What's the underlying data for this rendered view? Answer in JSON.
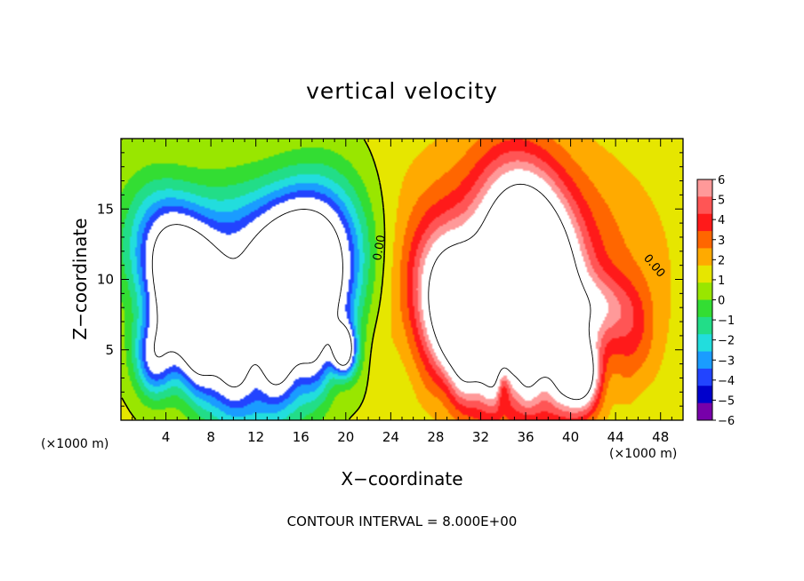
{
  "chart_data": {
    "type": "heatmap",
    "title": "vertical velocity",
    "xlabel": "X−coordinate",
    "ylabel": "Z−coordinate",
    "x_unit_left": "(×1000 m)",
    "x_unit_right": "(×1000 m)",
    "footer": "CONTOUR INTERVAL = 8.000E+00",
    "xlim": [
      0,
      50
    ],
    "ylim": [
      0,
      20
    ],
    "x_ticks": [
      4,
      8,
      12,
      16,
      20,
      24,
      28,
      32,
      36,
      40,
      44,
      48
    ],
    "x_tick_labels": [
      "4",
      "8",
      "12",
      "16",
      "20",
      "24",
      "28",
      "32",
      "36",
      "40",
      "44",
      "48"
    ],
    "y_ticks": [
      5,
      10,
      15
    ],
    "y_tick_labels": [
      "5",
      "10",
      "15"
    ],
    "colorbar": {
      "levels": [
        6,
        5,
        4,
        3,
        2,
        1,
        0,
        -1,
        -2,
        -3,
        -4,
        -5,
        -6
      ],
      "labels": [
        "6",
        "5",
        "4",
        "3",
        "2",
        "1",
        "0",
        "−1",
        "−2",
        "−3",
        "−4",
        "−5",
        "−6"
      ],
      "colors": [
        "#ff9999",
        "#ff5555",
        "#ff1a1a",
        "#ff6600",
        "#ffaa00",
        "#e6e600",
        "#99e600",
        "#33dd33",
        "#22dd88",
        "#22dddd",
        "#1a9cff",
        "#2244ff",
        "#0000cc",
        "#7700aa"
      ],
      "over_color": "#ffffff",
      "under_color": "#ffffff"
    },
    "contour_labels": [
      {
        "text": "0.00",
        "x": 23.3,
        "y": 12.2,
        "angle": -80
      },
      {
        "text": "0.00",
        "x": 47.2,
        "y": 10.8,
        "angle": 50
      }
    ],
    "features": [
      {
        "name": "downdraft-left-1",
        "sign": -1,
        "x": 6.5,
        "y": 8.0,
        "sx": 2.2,
        "sy": 4.5,
        "amp": 15,
        "theta": 25
      },
      {
        "name": "downdraft-left-2",
        "sign": -1,
        "x": 15.5,
        "y": 8.5,
        "sx": 3.0,
        "sy": 4.8,
        "amp": 16,
        "theta": -20
      },
      {
        "name": "downdraft-left-3",
        "sign": -1,
        "x": 11.0,
        "y": 12.0,
        "sx": 6.5,
        "sy": 3.5,
        "amp": 5,
        "theta": 0
      },
      {
        "name": "downdraft-left-4",
        "sign": -1,
        "x": 19.8,
        "y": 5.0,
        "sx": 0.7,
        "sy": 1.2,
        "amp": 10,
        "theta": 0
      },
      {
        "name": "downdraft-left-5",
        "sign": -1,
        "x": 3.0,
        "y": 4.5,
        "sx": 1.4,
        "sy": 2.0,
        "amp": 6,
        "theta": 0
      },
      {
        "name": "updraft-right-1",
        "sign": 1,
        "x": 36.5,
        "y": 9.5,
        "sx": 2.6,
        "sy": 5.0,
        "amp": 16,
        "theta": 10
      },
      {
        "name": "updraft-right-2",
        "sign": 1,
        "x": 30.5,
        "y": 7.0,
        "sx": 2.2,
        "sy": 3.8,
        "amp": 13,
        "theta": 20
      },
      {
        "name": "updraft-right-3",
        "sign": 1,
        "x": 35.0,
        "y": 11.0,
        "sx": 7.5,
        "sy": 5.5,
        "amp": 4,
        "theta": 0
      },
      {
        "name": "updraft-right-4",
        "sign": 1,
        "x": 40.8,
        "y": 3.3,
        "sx": 1.1,
        "sy": 1.8,
        "amp": 9,
        "theta": 0
      },
      {
        "name": "updraft-right-5",
        "sign": 1,
        "x": 42.5,
        "y": 8.0,
        "sx": 2.0,
        "sy": 1.6,
        "amp": 3,
        "theta": 0
      },
      {
        "name": "updraft-right-6",
        "sign": 1,
        "x": 45.5,
        "y": 6.0,
        "sx": 1.5,
        "sy": 2.5,
        "amp": 2,
        "theta": 0
      },
      {
        "name": "downdraft-right",
        "sign": -1,
        "x": 34.0,
        "y": 2.5,
        "sx": 0.4,
        "sy": 1.2,
        "amp": 3,
        "theta": 0
      }
    ]
  }
}
